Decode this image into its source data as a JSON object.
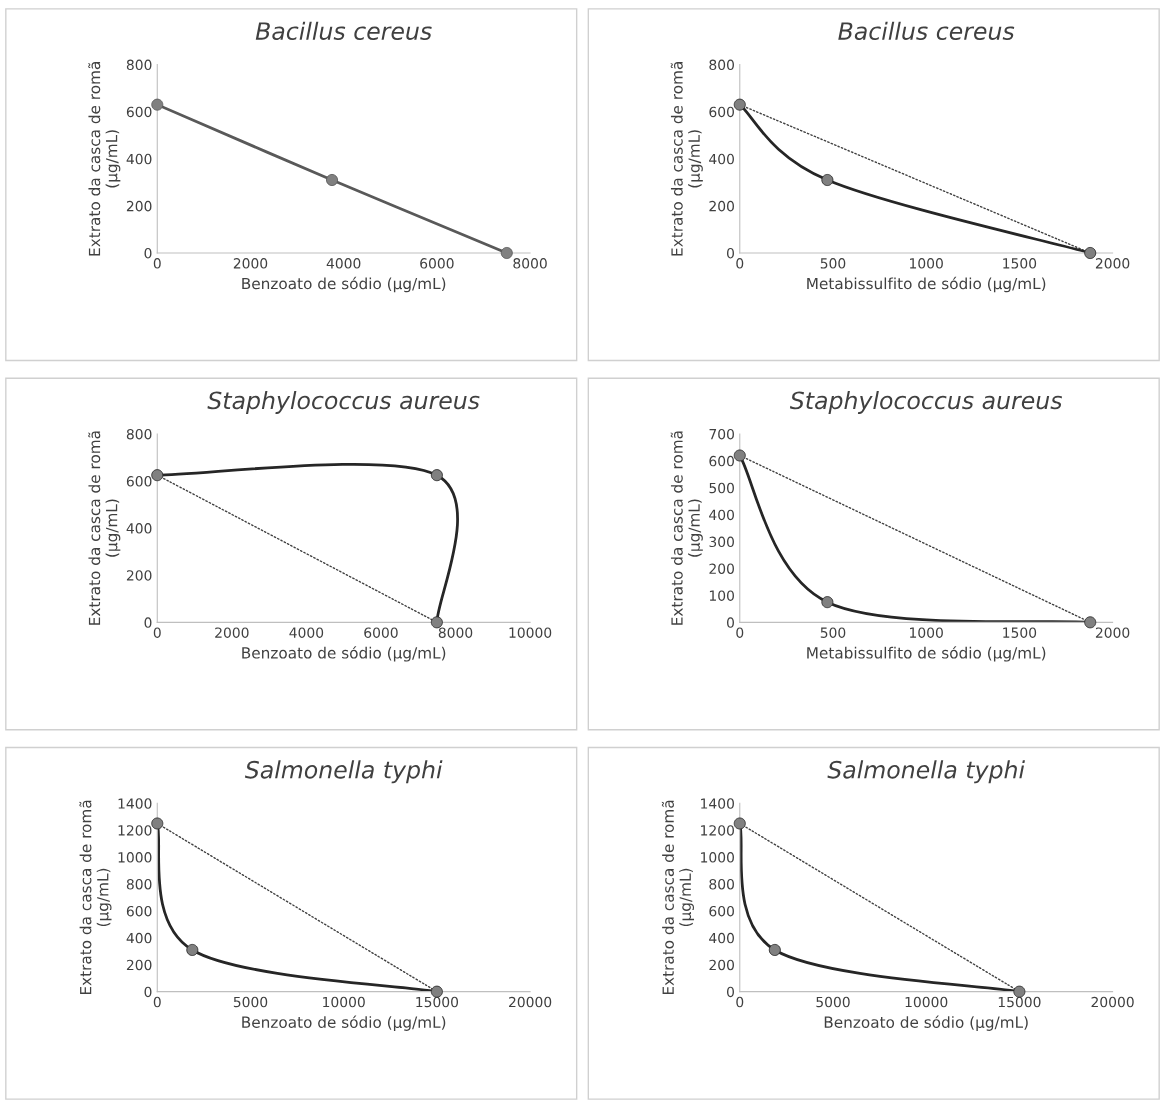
{
  "chart_data": [
    {
      "type": "line",
      "title": "Bacillus cereus",
      "xlabel": "Benzoato de sódio (µg/mL)",
      "ylabel": "Extrato da casca de romã\n(µg/mL)",
      "xlim": [
        0,
        8000
      ],
      "xticks": [
        0,
        2000,
        4000,
        6000,
        8000
      ],
      "ylim": [
        0,
        800
      ],
      "yticks": [
        0,
        200,
        400,
        600,
        800
      ],
      "grid": false,
      "legend": false,
      "series": [
        {
          "x": [
            0,
            3750,
            7500
          ],
          "values": [
            630,
            310,
            0
          ],
          "color": "#595959",
          "line_style": "solid",
          "marker": "circle"
        }
      ]
    },
    {
      "type": "line",
      "title": "Bacillus cereus",
      "xlabel": "Metabissulfito de sódio (µg/mL)",
      "ylabel": "Extrato da casca de romã\n(µg/mL)",
      "xlim": [
        0,
        2000
      ],
      "xticks": [
        0,
        500,
        1000,
        1500,
        2000
      ],
      "ylim": [
        0,
        800
      ],
      "yticks": [
        0,
        200,
        400,
        600,
        800
      ],
      "grid": false,
      "legend": false,
      "series": [
        {
          "x": [
            0,
            1880
          ],
          "values": [
            630,
            0
          ],
          "color": "#404040",
          "line_style": "dotted",
          "marker": "none"
        },
        {
          "x": [
            0,
            470,
            1880
          ],
          "values": [
            630,
            310,
            0
          ],
          "color": "#262626",
          "line_style": "solid",
          "marker": "circle"
        }
      ]
    },
    {
      "type": "line",
      "title": "Staphylococcus aureus",
      "xlabel": "Benzoato de sódio (µg/mL)",
      "ylabel": "Extrato da casca de romã\n(µg/mL)",
      "xlim": [
        0,
        10000
      ],
      "xticks": [
        0,
        2000,
        4000,
        6000,
        8000,
        10000
      ],
      "ylim": [
        0,
        800
      ],
      "yticks": [
        0,
        200,
        400,
        600,
        800
      ],
      "grid": false,
      "legend": false,
      "series": [
        {
          "x": [
            0,
            7500
          ],
          "values": [
            625,
            0
          ],
          "color": "#404040",
          "line_style": "dotted",
          "marker": "none"
        },
        {
          "x": [
            0,
            7500,
            7500
          ],
          "values": [
            625,
            625,
            0
          ],
          "color": "#262626",
          "line_style": "solid",
          "marker": "circle"
        }
      ]
    },
    {
      "type": "line",
      "title": "Staphylococcus aureus",
      "xlabel": "Metabissulfito de sódio (µg/mL)",
      "ylabel": "Extrato da casca de romã\n(µg/mL)",
      "xlim": [
        0,
        2000
      ],
      "xticks": [
        0,
        500,
        1000,
        1500,
        2000
      ],
      "ylim": [
        0,
        700
      ],
      "yticks": [
        0,
        100,
        200,
        300,
        400,
        500,
        600,
        700
      ],
      "grid": false,
      "legend": false,
      "series": [
        {
          "x": [
            0,
            1880
          ],
          "values": [
            620,
            0
          ],
          "color": "#404040",
          "line_style": "dotted",
          "marker": "none"
        },
        {
          "x": [
            0,
            470,
            1880
          ],
          "values": [
            620,
            75,
            0
          ],
          "color": "#262626",
          "line_style": "solid",
          "marker": "circle"
        }
      ]
    },
    {
      "type": "line",
      "title": "Salmonella typhi",
      "xlabel": "Benzoato de sódio (µg/mL)",
      "ylabel": "Extrato da casca de romã\n(µg/mL)",
      "xlim": [
        0,
        20000
      ],
      "xticks": [
        0,
        5000,
        10000,
        15000,
        20000
      ],
      "ylim": [
        0,
        1400
      ],
      "yticks": [
        0,
        200,
        400,
        600,
        800,
        1000,
        1200,
        1400
      ],
      "grid": false,
      "legend": false,
      "series": [
        {
          "x": [
            0,
            15000
          ],
          "values": [
            1250,
            0
          ],
          "color": "#404040",
          "line_style": "dotted",
          "marker": "none"
        },
        {
          "x": [
            0,
            1880,
            15000
          ],
          "values": [
            1250,
            310,
            0
          ],
          "color": "#262626",
          "line_style": "solid",
          "marker": "circle"
        }
      ]
    },
    {
      "type": "line",
      "title": "Salmonella typhi",
      "xlabel": "Benzoato de sódio (µg/mL)",
      "ylabel": "Extrato da casca de romã\n(µg/mL)",
      "xlim": [
        0,
        20000
      ],
      "xticks": [
        0,
        5000,
        10000,
        15000,
        20000
      ],
      "ylim": [
        0,
        1400
      ],
      "yticks": [
        0,
        200,
        400,
        600,
        800,
        1000,
        1200,
        1400
      ],
      "grid": false,
      "legend": false,
      "series": [
        {
          "x": [
            0,
            15000
          ],
          "values": [
            1250,
            0
          ],
          "color": "#404040",
          "line_style": "dotted",
          "marker": "none"
        },
        {
          "x": [
            0,
            1880,
            15000
          ],
          "values": [
            1250,
            310,
            0
          ],
          "color": "#262626",
          "line_style": "solid",
          "marker": "circle"
        }
      ]
    }
  ]
}
